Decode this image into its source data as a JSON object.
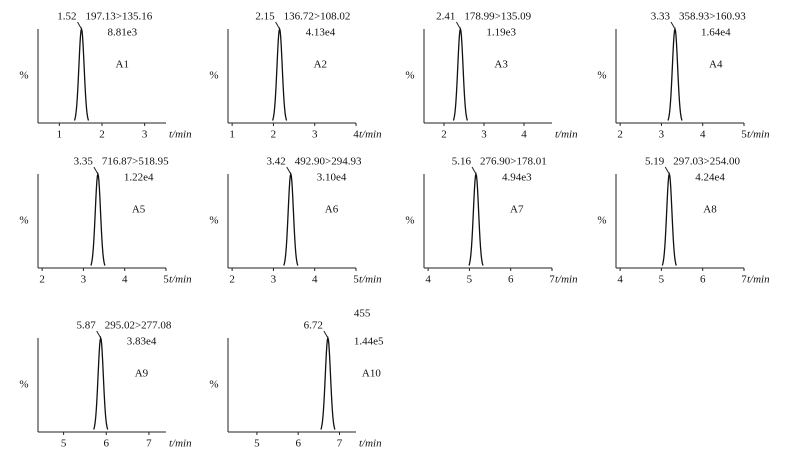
{
  "chart_data": [
    {
      "type": "peak",
      "name": "A1",
      "peak": 1.52,
      "peak_label": "1.52",
      "transition": "197.13>135.16",
      "intensity": "8.81e3",
      "xlim": [
        0.5,
        3.5
      ],
      "xticks": [
        1,
        2,
        3
      ],
      "x_label": "t/min",
      "y_label": "%"
    },
    {
      "type": "peak",
      "name": "A2",
      "peak": 2.15,
      "peak_label": "2.15",
      "transition": "136.72>108.02",
      "intensity": "4.13e4",
      "xlim": [
        0.9,
        4.0
      ],
      "xticks": [
        1,
        2,
        3,
        4
      ],
      "x_label": "t/min",
      "y_label": "%"
    },
    {
      "type": "peak",
      "name": "A3",
      "peak": 2.41,
      "peak_label": "2.41",
      "transition": "178.99>135.09",
      "intensity": "1.19e3",
      "xlim": [
        1.5,
        4.7
      ],
      "xticks": [
        2,
        3,
        4
      ],
      "x_label": "t/min",
      "y_label": "%"
    },
    {
      "type": "peak",
      "name": "A4",
      "peak": 3.33,
      "peak_label": "3.33",
      "transition": "358.93>160.93",
      "intensity": "1.64e4",
      "xlim": [
        1.9,
        5.0
      ],
      "xticks": [
        2,
        3,
        4,
        5
      ],
      "x_label": "t/min",
      "y_label": "%"
    },
    {
      "type": "peak",
      "name": "A5",
      "peak": 3.35,
      "peak_label": "3.35",
      "transition": "716.87>518.95",
      "intensity": "1.22e4",
      "xlim": [
        1.9,
        5.0
      ],
      "xticks": [
        2,
        3,
        4,
        5
      ],
      "x_label": "t/min",
      "y_label": "%"
    },
    {
      "type": "peak",
      "name": "A6",
      "peak": 3.42,
      "peak_label": "3.42",
      "transition": "492.90>294.93",
      "intensity": "3.10e4",
      "xlim": [
        1.9,
        5.0
      ],
      "xticks": [
        2,
        3,
        4,
        5
      ],
      "x_label": "t/min",
      "y_label": "%"
    },
    {
      "type": "peak",
      "name": "A7",
      "peak": 5.16,
      "peak_label": "5.16",
      "transition": "276.90>178.01",
      "intensity": "4.94e3",
      "xlim": [
        3.9,
        7.0
      ],
      "xticks": [
        4,
        5,
        6,
        7
      ],
      "x_label": "t/min",
      "y_label": "%"
    },
    {
      "type": "peak",
      "name": "A8",
      "peak": 5.19,
      "peak_label": "5.19",
      "transition": "297.03>254.00",
      "intensity": "4.24e4",
      "xlim": [
        3.9,
        7.0
      ],
      "xticks": [
        4,
        5,
        6,
        7
      ],
      "x_label": "t/min",
      "y_label": "%"
    },
    {
      "type": "peak",
      "name": "A9",
      "peak": 5.87,
      "peak_label": "5.87",
      "transition": "295.02>277.08",
      "intensity": "3.83e4",
      "xlim": [
        4.4,
        7.4
      ],
      "xticks": [
        5,
        6,
        7
      ],
      "x_label": "t/min",
      "y_label": "%"
    },
    {
      "type": "peak",
      "name": "A10",
      "peak": 6.72,
      "peak_label": "6.72",
      "transition": "455",
      "intensity": "1.44e5",
      "xlim": [
        4.3,
        7.4
      ],
      "xticks": [
        5,
        6,
        7
      ],
      "x_label": "t/min",
      "y_label": "%"
    }
  ]
}
